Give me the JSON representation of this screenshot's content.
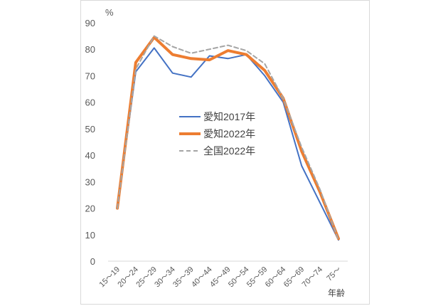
{
  "chart_data": {
    "type": "line",
    "ylabel": "%",
    "xlabel": "年齢",
    "ylim": [
      0,
      90
    ],
    "yticks": [
      0,
      10,
      20,
      30,
      40,
      50,
      60,
      70,
      80,
      90
    ],
    "categories": [
      "15～19",
      "20～24",
      "25～29",
      "30～34",
      "35～39",
      "40～44",
      "45～49",
      "50～54",
      "55～59",
      "60～64",
      "65～69",
      "70～74",
      "75～"
    ],
    "series": [
      {
        "name": "愛知2017年",
        "color": "#4472c4",
        "style": "solid",
        "width": 2,
        "values": [
          20.0,
          71.5,
          80.5,
          71.0,
          69.5,
          77.5,
          76.5,
          78.0,
          70.0,
          60.0,
          36.0,
          22.0,
          8.0
        ]
      },
      {
        "name": "愛知2022年",
        "color": "#ed7d31",
        "style": "solid",
        "width": 4,
        "values": [
          20.0,
          75.0,
          84.5,
          78.0,
          76.5,
          76.0,
          79.5,
          78.0,
          72.0,
          61.5,
          41.5,
          26.0,
          8.5
        ]
      },
      {
        "name": "全国2022年",
        "color": "#a5a5a5",
        "style": "dashed",
        "width": 2,
        "values": [
          20.0,
          72.5,
          85.0,
          81.0,
          78.5,
          80.0,
          81.5,
          79.5,
          74.5,
          61.5,
          43.0,
          27.0,
          8.0
        ]
      }
    ],
    "legend_position": "center"
  }
}
